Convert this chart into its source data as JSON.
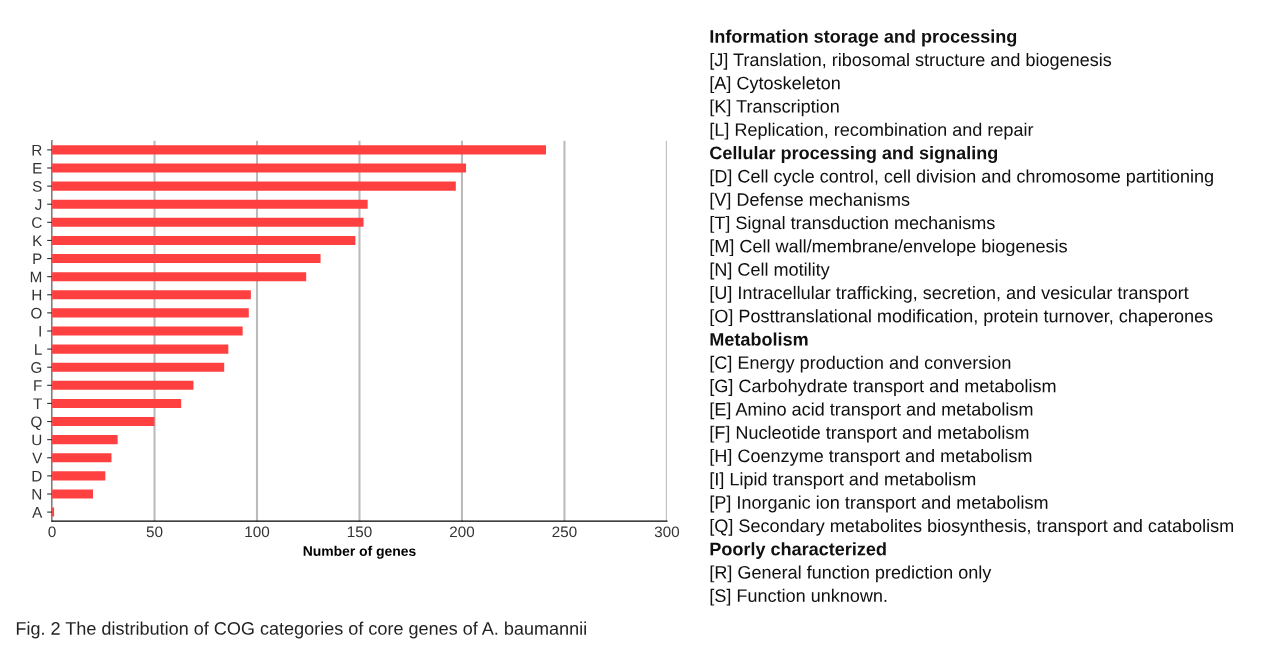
{
  "chart_data": {
    "type": "bar",
    "orientation": "horizontal",
    "xlabel": "Number of genes",
    "categories": [
      "R",
      "E",
      "S",
      "J",
      "C",
      "K",
      "P",
      "M",
      "H",
      "O",
      "I",
      "L",
      "G",
      "F",
      "T",
      "Q",
      "U",
      "V",
      "D",
      "N",
      "A"
    ],
    "values": [
      241,
      202,
      197,
      154,
      152,
      148,
      131,
      124,
      97,
      96,
      93,
      86,
      84,
      69,
      63,
      50,
      32,
      29,
      26,
      20,
      1
    ],
    "color": "#ff4040",
    "xlim": [
      0,
      300
    ],
    "xticks": [
      0,
      50,
      100,
      150,
      200,
      250,
      300
    ],
    "grid": "x",
    "legend": false,
    "annotations": [
      "Information storage and processing",
      "[J] Translation, ribosomal structure and biogenesis",
      "[A] Cytoskeleton",
      "[K] Transcription",
      "[L] Replication, recombination and repair",
      "Cellular processing and signaling",
      "[D] Cell cycle control, cell division and chromosome partitioning",
      "[V] Defense mechanisms",
      "[T] Signal transduction mechanisms",
      "[M] Cell wall/membrane/envelope biogenesis",
      "[N] Cell motility",
      "[U] Intracellular trafficking, secretion, and vesicular transport",
      "[O] Posttranslational modification, protein turnover, chaperones",
      "Metabolism",
      "[C] Energy production and conversion",
      "[G] Carbohydrate transport and metabolism",
      "[E] Amino acid transport and metabolism",
      "[F] Nucleotide transport and metabolism",
      "[H] Coenzyme transport and metabolism",
      "[I] Lipid transport and metabolism",
      "[P] Inorganic ion transport and metabolism",
      "[Q] Secondary metabolites biosynthesis, transport and catabolism",
      "Poorly characterized",
      "[R] General function prediction only",
      "[S] Function unknown.",
      "Fig. 2 The distribution of COG categories of core genes of A. baumannii"
    ]
  }
}
